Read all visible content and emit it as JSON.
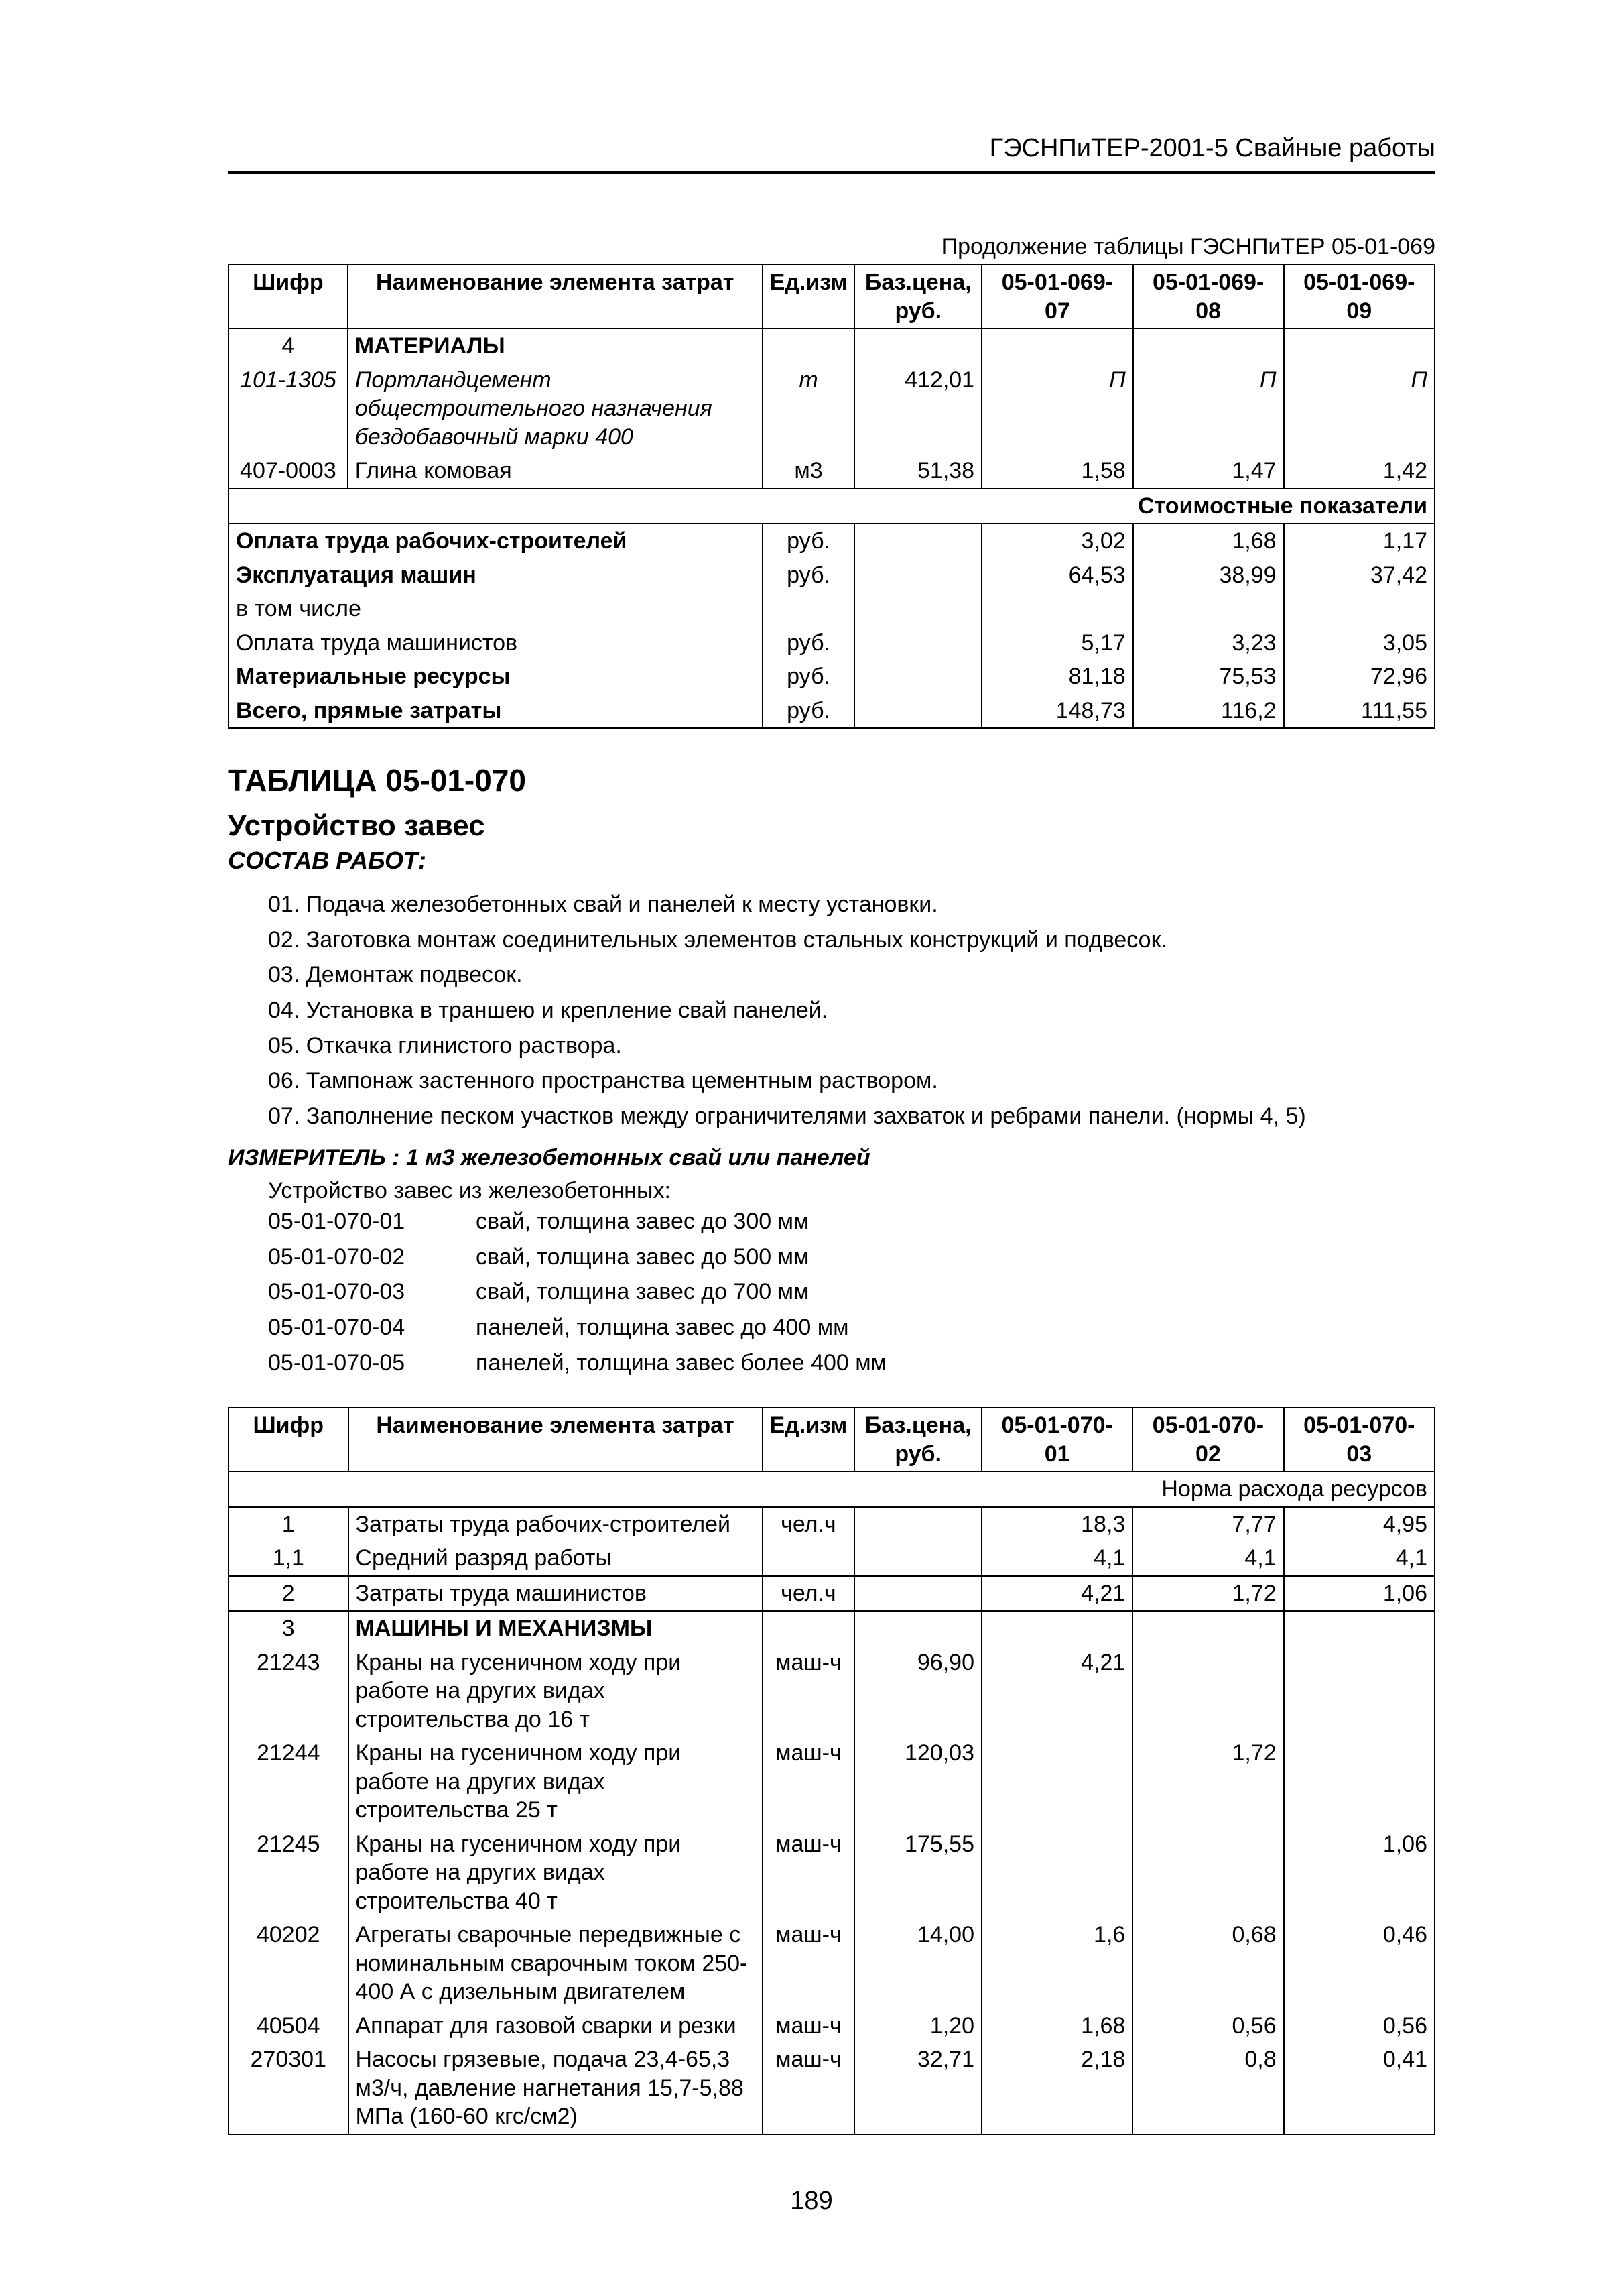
{
  "header": "ГЭСНПиТЕР-2001-5 Свайные работы",
  "caption1": "Продолжение таблицы ГЭСНПиТЕР 05-01-069",
  "t1": {
    "h": [
      "Шифр",
      "Наименование элемента затрат",
      "Ед.изм",
      "Баз.цена, руб.",
      "05-01-069-07",
      "05-01-069-08",
      "05-01-069-09"
    ],
    "rows": [
      {
        "c0": "4",
        "c1": "МАТЕРИАЛЫ",
        "bold": true
      },
      {
        "c0": "101-1305",
        "c1": "Портландцемент общестроительного назначения бездобавочный марки 400",
        "c2": "т",
        "c3": "412,01",
        "c4": "П",
        "c5": "П",
        "c6": "П",
        "ital": true
      },
      {
        "c0": "407-0003",
        "c1": "Глина комовая",
        "c2": "м3",
        "c3": "51,38",
        "c4": "1,58",
        "c5": "1,47",
        "c6": "1,42"
      }
    ],
    "costLabel": "Стоимостные показатели",
    "cost": [
      {
        "n": "Оплата труда рабочих-строителей",
        "u": "руб.",
        "v": [
          "3,02",
          "1,68",
          "1,17"
        ],
        "b": true
      },
      {
        "n": "Эксплуатация машин",
        "u": "руб.",
        "v": [
          "64,53",
          "38,99",
          "37,42"
        ],
        "b": true
      },
      {
        "n": "в том числе",
        "u": "",
        "v": [
          "",
          "",
          ""
        ]
      },
      {
        "n": "Оплата труда машинистов",
        "u": "руб.",
        "v": [
          "5,17",
          "3,23",
          "3,05"
        ]
      },
      {
        "n": "Материальные ресурсы",
        "u": "руб.",
        "v": [
          "81,18",
          "75,53",
          "72,96"
        ],
        "b": true
      },
      {
        "n": "Всего, прямые затраты",
        "u": "руб.",
        "v": [
          "148,73",
          "116,2",
          "111,55"
        ],
        "b": true
      }
    ]
  },
  "secTitle": "ТАБЛИЦА 05-01-070",
  "secSub": "Устройство завес",
  "secSub2": "СОСТАВ РАБОТ:",
  "works": [
    "01. Подача железобетонных свай и панелей к месту установки.",
    "02. Заготовка монтаж соединительных элементов стальных конструкций и подвесок.",
    "03. Демонтаж подвесок.",
    "04. Установка в траншею и крепление свай панелей.",
    "05. Откачка глинистого раствора.",
    "06. Тампонаж застенного пространства цементным раствором.",
    "07. Заполнение песком участков между ограничителями захваток и ребрами панели. (нормы 4, 5)"
  ],
  "measurer": "ИЗМЕРИТЕЛЬ : 1 м3 железобетонных свай или панелей",
  "listHead": "Устройство завес из железобетонных:",
  "codes": [
    {
      "k": "05-01-070-01",
      "t": "свай, толщина завес до 300 мм"
    },
    {
      "k": "05-01-070-02",
      "t": "свай, толщина завес до 500 мм"
    },
    {
      "k": "05-01-070-03",
      "t": "свай, толщина завес до 700 мм"
    },
    {
      "k": "05-01-070-04",
      "t": "панелей, толщина завес до 400 мм"
    },
    {
      "k": "05-01-070-05",
      "t": "панелей, толщина завес более 400 мм"
    }
  ],
  "t2": {
    "h": [
      "Шифр",
      "Наименование элемента затрат",
      "Ед.изм",
      "Баз.цена, руб.",
      "05-01-070-01",
      "05-01-070-02",
      "05-01-070-03"
    ],
    "normLabel": "Норма расхода ресурсов",
    "rows": [
      {
        "c0": "1",
        "c1": "Затраты труда рабочих-строителей",
        "c2": "чел.ч",
        "c3": "",
        "c4": "18,3",
        "c5": "7,77",
        "c6": "4,95"
      },
      {
        "c0": "1,1",
        "c1": "Средний разряд работы",
        "c2": "",
        "c3": "",
        "c4": "4,1",
        "c5": "4,1",
        "c6": "4,1"
      },
      {
        "c0": "2",
        "c1": "Затраты труда машинистов",
        "c2": "чел.ч",
        "c3": "",
        "c4": "4,21",
        "c5": "1,72",
        "c6": "1,06",
        "tb": true
      },
      {
        "c0": "3",
        "c1": "МАШИНЫ И МЕХАНИЗМЫ",
        "bold": true,
        "tb": true
      },
      {
        "c0": "21243",
        "c1": "Краны на гусеничном ходу при работе на других видах строительства до 16 т",
        "c2": "маш-ч",
        "c3": "96,90",
        "c4": "4,21",
        "c5": "",
        "c6": ""
      },
      {
        "c0": "21244",
        "c1": "Краны на гусеничном ходу при работе на других видах строительства 25 т",
        "c2": "маш-ч",
        "c3": "120,03",
        "c4": "",
        "c5": "1,72",
        "c6": ""
      },
      {
        "c0": "21245",
        "c1": "Краны на гусеничном ходу при работе на других видах строительства 40 т",
        "c2": "маш-ч",
        "c3": "175,55",
        "c4": "",
        "c5": "",
        "c6": "1,06"
      },
      {
        "c0": "40202",
        "c1": "Агрегаты сварочные передвижные с номинальным сварочным током 250-400 А с дизельным двигателем",
        "c2": "маш-ч",
        "c3": "14,00",
        "c4": "1,6",
        "c5": "0,68",
        "c6": "0,46"
      },
      {
        "c0": "40504",
        "c1": "Аппарат для газовой сварки и резки",
        "c2": "маш-ч",
        "c3": "1,20",
        "c4": "1,68",
        "c5": "0,56",
        "c6": "0,56"
      },
      {
        "c0": "270301",
        "c1": "Насосы грязевые, подача 23,4-65,3 м3/ч, давление нагнетания 15,7-5,88 МПа (160-60 кгс/см2)",
        "c2": "маш-ч",
        "c3": "32,71",
        "c4": "2,18",
        "c5": "0,8",
        "c6": "0,41"
      }
    ]
  },
  "pageNum": "189",
  "colW": {
    "c0": "180px",
    "c1": "630px",
    "c2": "130px",
    "c3": "190px",
    "cv": "230px"
  }
}
